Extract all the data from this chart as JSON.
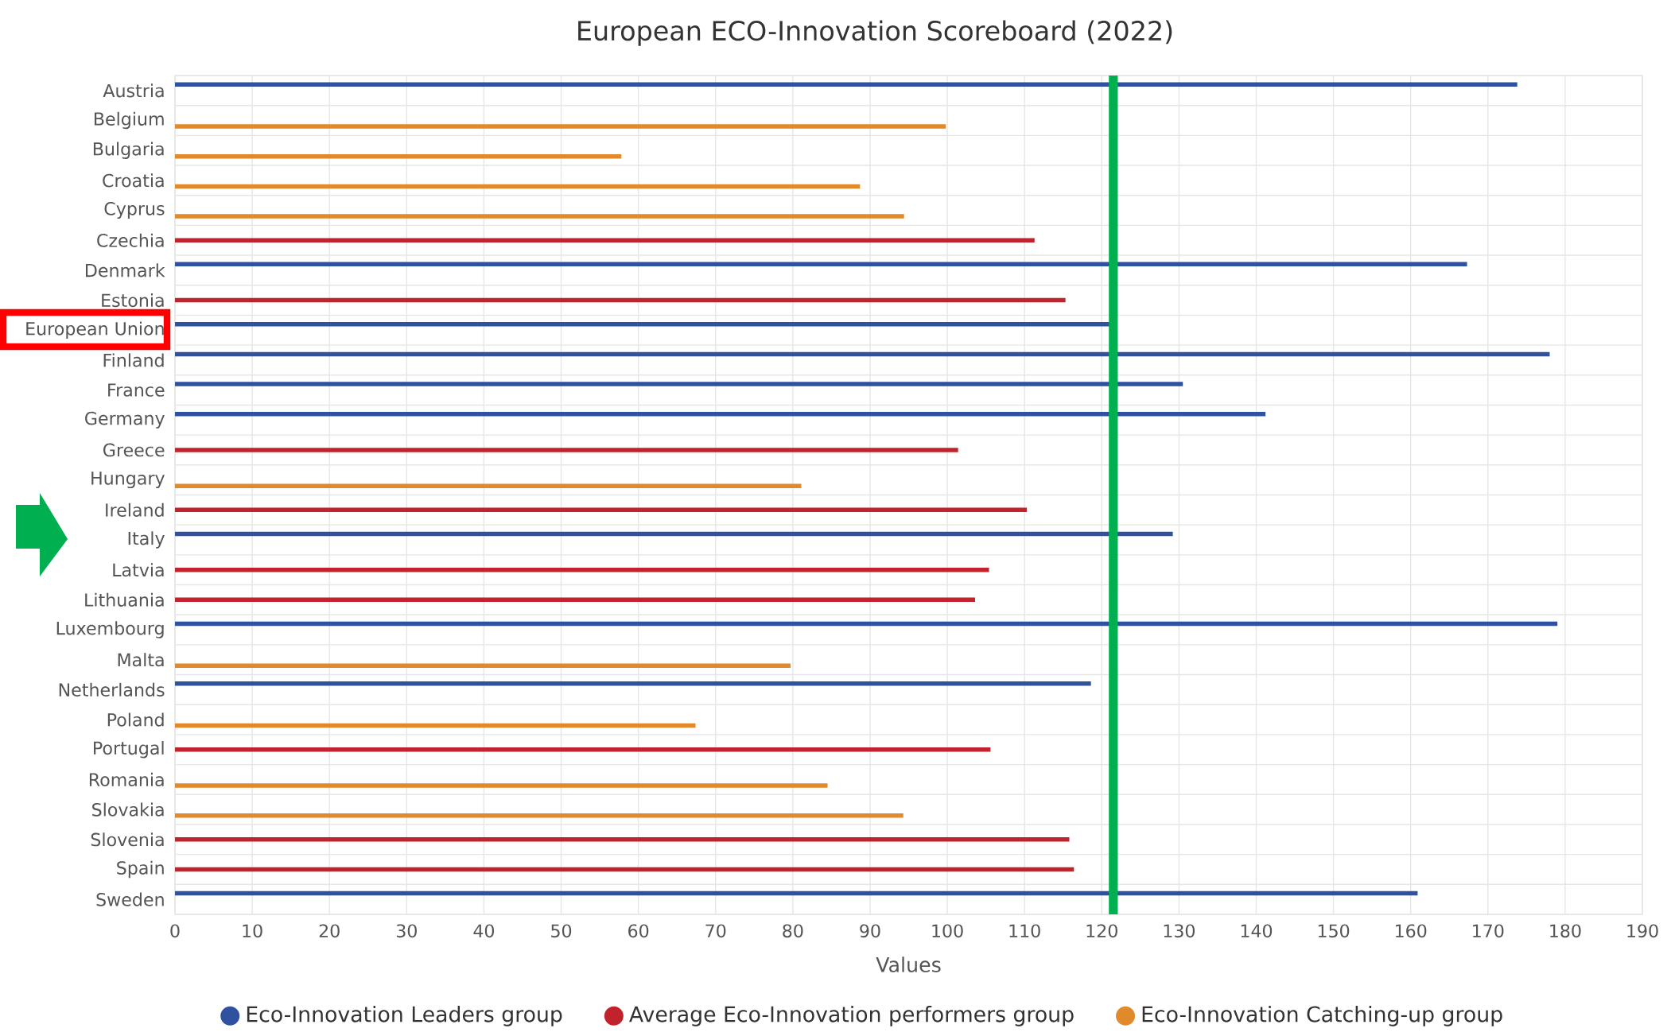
{
  "chart_data": {
    "type": "bar",
    "orientation": "horizontal",
    "title": "European ECO-Innovation Scoreboard (2022)",
    "xlabel": "Values",
    "categories": [
      "Austria",
      "Belgium",
      "Bulgaria",
      "Croatia",
      "Cyprus",
      "Czechia",
      "Denmark",
      "Estonia",
      "European Union",
      "Finland",
      "France",
      "Germany",
      "Greece",
      "Hungary",
      "Ireland",
      "Italy",
      "Latvia",
      "Lithuania",
      "Luxembourg",
      "Malta",
      "Netherlands",
      "Poland",
      "Portugal",
      "Romania",
      "Slovakia",
      "Slovenia",
      "Spain",
      "Sweden"
    ],
    "series": [
      {
        "name": "Eco-Innovation Leaders group",
        "color": "#2f52a0",
        "values": [
          173.8,
          null,
          null,
          null,
          null,
          null,
          167.3,
          null,
          121.1,
          178.0,
          130.5,
          141.2,
          null,
          null,
          null,
          129.2,
          null,
          null,
          179.0,
          null,
          118.6,
          null,
          null,
          null,
          null,
          null,
          null,
          160.9
        ]
      },
      {
        "name": "Average Eco-Innovation performers group",
        "color": "#c0232b",
        "values": [
          null,
          null,
          null,
          null,
          null,
          111.3,
          null,
          115.3,
          null,
          null,
          null,
          null,
          101.4,
          null,
          110.3,
          null,
          105.4,
          103.6,
          null,
          null,
          null,
          null,
          105.6,
          null,
          null,
          115.8,
          116.4,
          null
        ]
      },
      {
        "name": "Eco-Innovation Catching-up group",
        "color": "#e08a2c",
        "values": [
          null,
          99.8,
          57.8,
          88.7,
          94.4,
          null,
          null,
          null,
          null,
          null,
          null,
          null,
          null,
          81.1,
          null,
          null,
          null,
          null,
          null,
          79.7,
          null,
          67.4,
          null,
          84.5,
          94.3,
          null,
          null,
          null
        ]
      }
    ],
    "xlim": [
      0,
      190
    ],
    "xticks": [
      0,
      10,
      20,
      30,
      40,
      50,
      60,
      70,
      80,
      90,
      100,
      110,
      120,
      130,
      140,
      150,
      160,
      170,
      180,
      190
    ],
    "ref_lines": [
      {
        "axis": "x",
        "value": 121.5,
        "color": "#00b050"
      }
    ],
    "grid": true,
    "legend": "bottom",
    "marker": "circle"
  }
}
